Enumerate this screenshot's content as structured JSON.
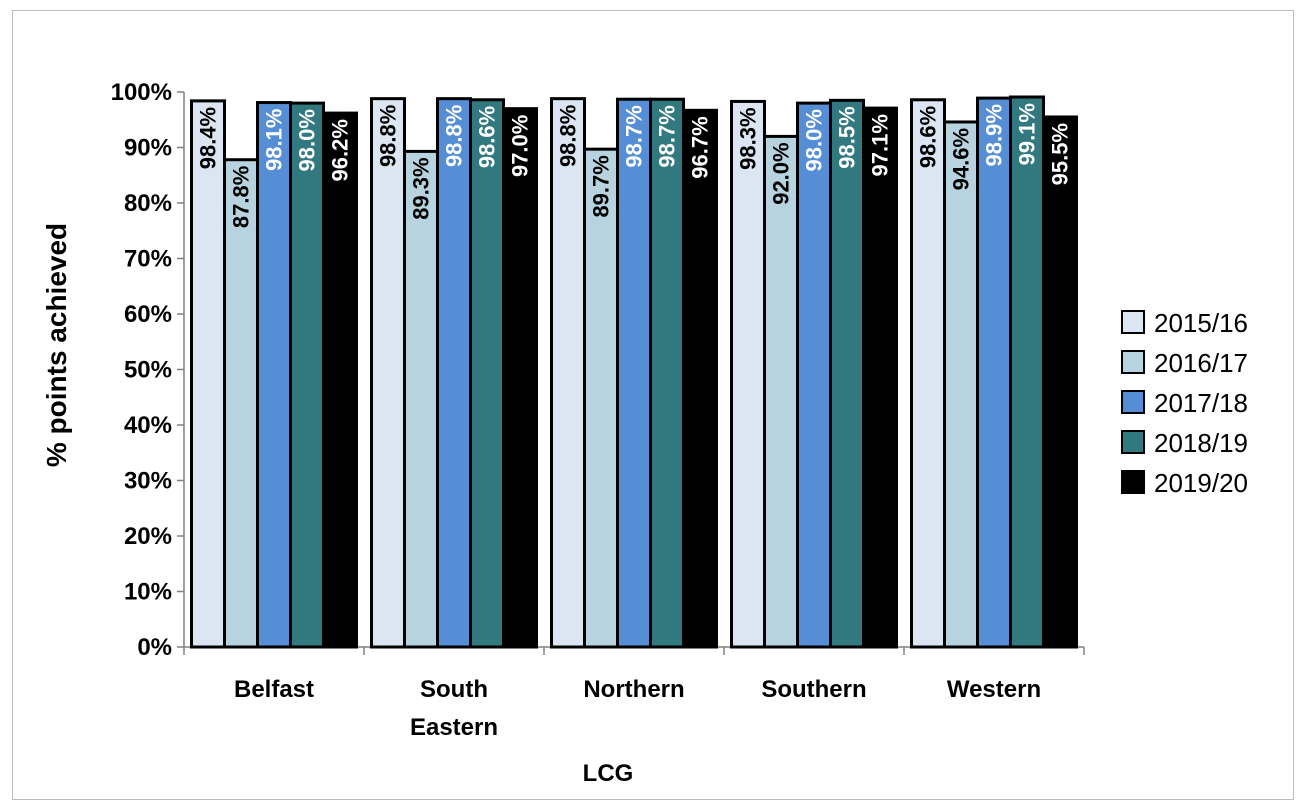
{
  "chart_data": {
    "type": "bar",
    "categories": [
      "Belfast",
      "South Eastern",
      "Northern",
      "Southern",
      "Western"
    ],
    "category_lines": [
      [
        "Belfast"
      ],
      [
        "South",
        "Eastern"
      ],
      [
        "Northern"
      ],
      [
        "Southern"
      ],
      [
        "Western"
      ]
    ],
    "series": [
      {
        "name": "2015/16",
        "color": "#dce6f2",
        "label_color": "#000000",
        "values": [
          98.4,
          98.8,
          98.8,
          98.3,
          98.6
        ],
        "labels": [
          "98.4%",
          "98.8%",
          "98.8%",
          "98.3%",
          "98.6%"
        ]
      },
      {
        "name": "2016/17",
        "color": "#b7d3df",
        "label_color": "#000000",
        "values": [
          87.8,
          89.3,
          89.7,
          92.0,
          94.6
        ],
        "labels": [
          "87.8%",
          "89.3%",
          "89.7%",
          "92.0%",
          "94.6%"
        ]
      },
      {
        "name": "2017/18",
        "color": "#558ed5",
        "label_color": "#ffffff",
        "values": [
          98.1,
          98.8,
          98.7,
          98.0,
          98.9
        ],
        "labels": [
          "98.1%",
          "98.8%",
          "98.7%",
          "98.0%",
          "98.9%"
        ]
      },
      {
        "name": "2018/19",
        "color": "#31787f",
        "label_color": "#ffffff",
        "values": [
          98.0,
          98.6,
          98.7,
          98.5,
          99.1
        ],
        "labels": [
          "98.0%",
          "98.6%",
          "98.7%",
          "98.5%",
          "99.1%"
        ]
      },
      {
        "name": "2019/20",
        "color": "#000000",
        "label_color": "#ffffff",
        "values": [
          96.2,
          97.0,
          96.7,
          97.1,
          95.5
        ],
        "labels": [
          "96.2%",
          "97.0%",
          "96.7%",
          "97.1%",
          "95.5%"
        ]
      }
    ],
    "title": "",
    "xlabel": "LCG",
    "ylabel": "% points achieved",
    "ylim": [
      0,
      100
    ],
    "yticks": [
      "0%",
      "10%",
      "20%",
      "30%",
      "40%",
      "50%",
      "60%",
      "70%",
      "80%",
      "90%",
      "100%"
    ],
    "grid": false,
    "legend_position": "right"
  }
}
